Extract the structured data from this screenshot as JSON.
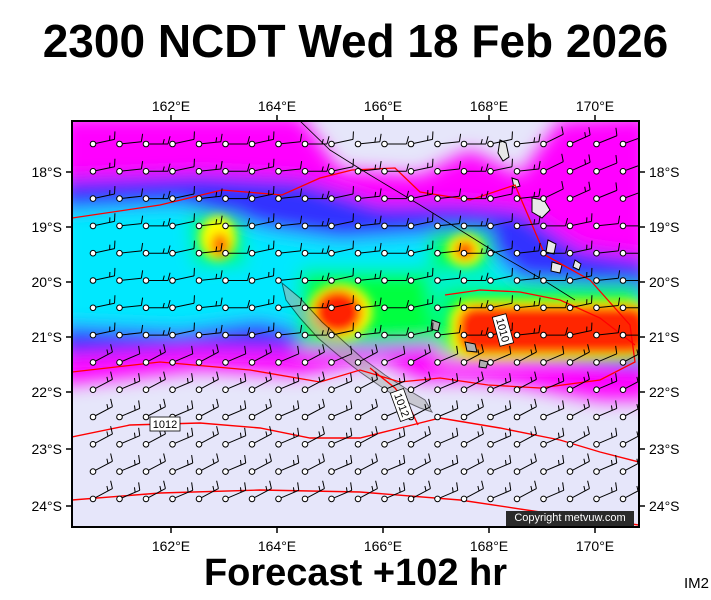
{
  "title": "2300 NCDT Wed 18 Feb 2026",
  "footer": "Forecast +102 hr",
  "corner_label": "IM2",
  "copyright": "Copyright metvuw.com",
  "axes": {
    "lon_ticks": [
      "162°E",
      "164°E",
      "166°E",
      "168°E",
      "170°E"
    ],
    "lat_ticks": [
      "18°S",
      "19°S",
      "20°S",
      "21°S",
      "22°S",
      "23°S",
      "24°S"
    ]
  },
  "isobar_labels": [
    "1012",
    "1012",
    "1010"
  ],
  "colors": {
    "background_field": "#e6e6fa",
    "magenta": "#ff00ff",
    "blue": "#3030ff",
    "cyan": "#00ffff",
    "green": "#00ff00",
    "yellow": "#ffff00",
    "orange": "#ff8c00",
    "red": "#ff2000",
    "isobar": "#ff0000"
  }
}
